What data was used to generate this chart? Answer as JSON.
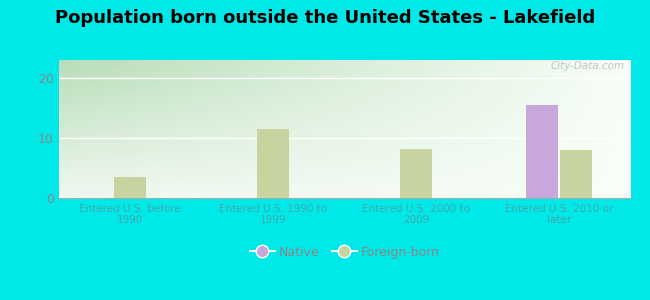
{
  "title": "Population born outside the United States - Lakefield",
  "categories": [
    "Entered U.S. before\n1990",
    "Entered U.S. 1990 to\n1999",
    "Entered U.S. 2000 to\n2009",
    "Entered U.S. 2010 or\nlater"
  ],
  "native_values": [
    0,
    0,
    0,
    15.5
  ],
  "foreign_values": [
    3.5,
    11.5,
    8.2,
    8.0
  ],
  "native_color": "#c8a8dc",
  "foreign_color": "#c8d4a0",
  "background_color": "#00e8e8",
  "yticks": [
    0,
    10,
    20
  ],
  "ylim": [
    0,
    23
  ],
  "bar_width": 0.22,
  "legend_native": "Native",
  "legend_foreign": "Foreign-born",
  "title_fontsize": 13,
  "tick_label_color": "#44aaaa",
  "ytick_color": "#888888",
  "watermark": "City-Data.com",
  "grid_color": "#ffffff",
  "plot_bg_top_left": "#c8e8c8",
  "plot_bg_right": "#f0f8f0",
  "plot_bg_bottom": "#e8f4e8"
}
